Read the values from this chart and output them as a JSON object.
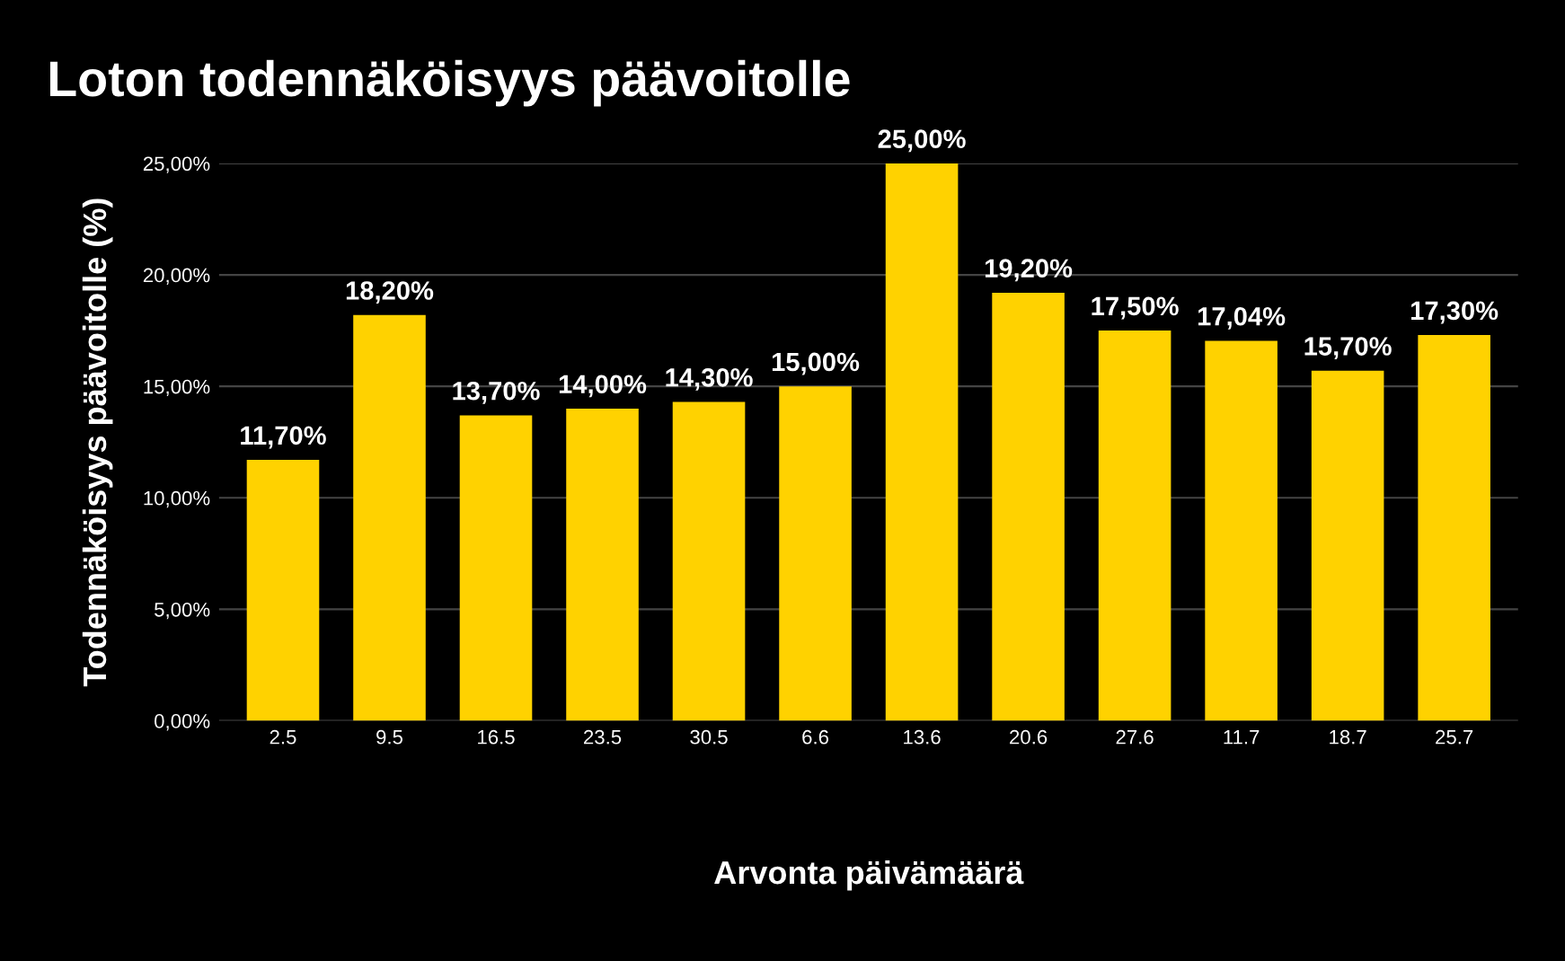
{
  "chart_data": {
    "type": "bar",
    "title": "Loton todennäköisyys päävoitolle",
    "xlabel": "Arvonta päivämäärä",
    "ylabel": "Todennäköisyys päävoitolle (%)",
    "categories": [
      "2.5",
      "9.5",
      "16.5",
      "23.5",
      "30.5",
      "6.6",
      "13.6",
      "20.6",
      "27.6",
      "11.7",
      "18.7",
      "25.7"
    ],
    "values": [
      11.7,
      18.2,
      13.7,
      14.0,
      14.3,
      15.0,
      25.0,
      19.2,
      17.5,
      17.04,
      15.7,
      17.3
    ],
    "value_labels": [
      "11,70%",
      "18,20%",
      "13,70%",
      "14,00%",
      "14,30%",
      "15,00%",
      "25,00%",
      "19,20%",
      "17,50%",
      "17,04%",
      "15,70%",
      "17,30%"
    ],
    "color": "#ffd200",
    "ylim": [
      0,
      25
    ],
    "yticks": [
      {
        "value": 0,
        "label": "0,00%"
      },
      {
        "value": 5,
        "label": "5,00%"
      },
      {
        "value": 10,
        "label": "10,00%"
      },
      {
        "value": 15,
        "label": "15,00%"
      },
      {
        "value": 20,
        "label": "20,00%"
      },
      {
        "value": 25,
        "label": "25,00%"
      }
    ],
    "grid": "y",
    "legend": false
  }
}
